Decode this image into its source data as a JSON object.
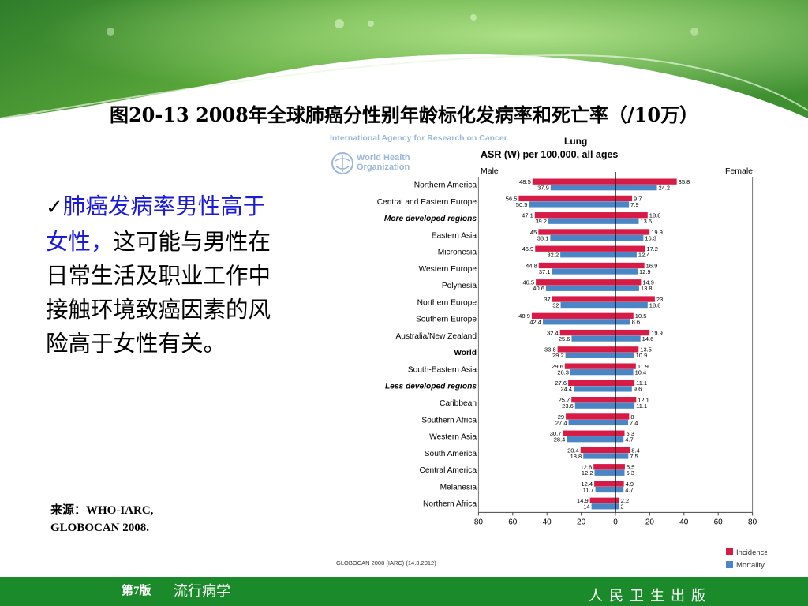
{
  "slide": {
    "title": "图20-13 2008年全球肺癌分性别年龄标化发病率和死亡率（/10万）",
    "bullet_check": "✓",
    "bullet_highlight": "肺癌发病率男性高于女性，",
    "bullet_rest": "这可能与男性在日常生活及职业工作中接触环境致癌因素的风险高于女性有关。",
    "source_line1": "来源：WHO-IARC,",
    "source_line2": "GLOBOCAN 2008."
  },
  "footer": {
    "edition": "第7版",
    "course": "流行病学",
    "publisher": "人民卫生出版"
  },
  "colors": {
    "incidence": "#d81b45",
    "mortality": "#4a86c5",
    "footer_bg": "#1a8a2a",
    "highlight_text": "#1a1ad8"
  },
  "chart_data": {
    "type": "bar",
    "orientation": "horizontal-pyramid",
    "header_org": "International Agency for Research on Cancer",
    "who_name_1": "World Health",
    "who_name_2": "Organization",
    "title": "Lung",
    "subtitle": "ASR (W) per 100,000, all ages",
    "left_label": "Male",
    "right_label": "Female",
    "xlim": [
      -80,
      80
    ],
    "xticks": [
      "80",
      "60",
      "40",
      "20",
      "0",
      "20",
      "40",
      "60",
      "80"
    ],
    "categories": [
      "Northern America",
      "Central and Eastern Europe",
      "More developed regions",
      "Eastern Asia",
      "Micronesia",
      "Western Europe",
      "Polynesia",
      "Northern Europe",
      "Southern Europe",
      "Australia/New Zealand",
      "World",
      "South-Eastern Asia",
      "Less developed regions",
      "Caribbean",
      "Southern Africa",
      "Western Asia",
      "South America",
      "Central America",
      "Melanesia",
      "Northern Africa"
    ],
    "category_style": [
      "normal",
      "normal",
      "italic-bold",
      "normal",
      "normal",
      "normal",
      "normal",
      "normal",
      "normal",
      "normal",
      "bold",
      "normal",
      "italic-bold",
      "normal",
      "normal",
      "normal",
      "normal",
      "normal",
      "normal",
      "normal"
    ],
    "series": [
      {
        "name": "Incidence",
        "color": "#d81b45",
        "male": [
          48.5,
          56.5,
          47.1,
          45,
          46.9,
          44.8,
          46.5,
          37,
          48.9,
          32.4,
          33.8,
          29.6,
          27.6,
          25.7,
          29,
          30.7,
          20.4,
          12.8,
          12.4,
          14.9
        ],
        "female": [
          35.8,
          9.7,
          18.8,
          19.9,
          17.2,
          16.9,
          14.9,
          23,
          10.5,
          19.9,
          13.5,
          11.9,
          11.1,
          12.1,
          8,
          5.3,
          8.4,
          5.5,
          4.9,
          2.2
        ]
      },
      {
        "name": "Mortality",
        "color": "#4a86c5",
        "male": [
          37.9,
          50.5,
          39.2,
          38.1,
          32.2,
          37.1,
          40.6,
          32,
          42.4,
          25.6,
          29.2,
          26.3,
          24.4,
          23.6,
          27.4,
          28.4,
          18.8,
          12.2,
          11.7,
          14
        ],
        "female": [
          24.2,
          7.9,
          13.6,
          16.3,
          12.4,
          12.9,
          13.8,
          18.8,
          8.6,
          14.6,
          10.9,
          10.4,
          9.6,
          11.1,
          7.4,
          4.7,
          7.5,
          5.3,
          4.7,
          2
        ]
      }
    ],
    "legend_position": "bottom-right",
    "footnote": "GLOBOCAN 2008 (IARC) (14.3.2012)"
  }
}
